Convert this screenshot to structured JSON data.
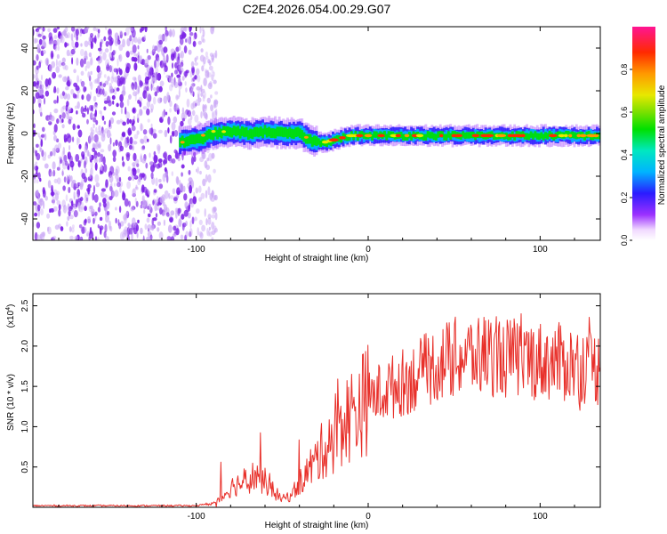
{
  "title": "C2E4.2026.054.00.29.G07",
  "colors": {
    "snr_line": "#e8302a",
    "spectrum_scatter": "#7a1ee6",
    "spectrum_scatter_light": "#c9a6f5",
    "axis": "#000000"
  },
  "chart_data": [
    {
      "type": "heatmap",
      "title": "C2E4.2026.054.00.29.G07",
      "xlabel": "Height of straight line (km)",
      "ylabel": "Frequency (Hz)",
      "xlim": [
        -195,
        135
      ],
      "ylim": [
        -50,
        50
      ],
      "xticks": [
        -100,
        0,
        100
      ],
      "xtick_labels": [
        "-100",
        "0",
        "100"
      ],
      "yticks": [
        -40,
        -20,
        0,
        20,
        40
      ],
      "ytick_labels": [
        "-40",
        "-20",
        "0",
        "20",
        "40"
      ],
      "noise_region_x": [
        -195,
        -100
      ],
      "signal_trace": {
        "x": [
          -110,
          -100,
          -90,
          -80,
          -70,
          -60,
          -50,
          -40,
          -35,
          -30,
          -25,
          -20,
          -15,
          -10,
          0,
          10,
          20,
          30,
          40,
          50,
          60,
          70,
          80,
          90,
          100,
          110,
          120,
          135
        ],
        "frequency": [
          -4,
          -3,
          0,
          1,
          0,
          1,
          0,
          0,
          -3,
          -4,
          -4,
          -3,
          -2,
          -1,
          -1,
          -1,
          -1,
          -1,
          -1,
          -1,
          -1,
          -1,
          -1,
          -1,
          -1,
          -1,
          -1,
          -1
        ]
      },
      "colorbar": {
        "label": "Normalized spectral amplitude",
        "range": [
          0.0,
          1.0
        ],
        "ticks": [
          0.0,
          0.2,
          0.4,
          0.6,
          0.8
        ],
        "tick_labels": [
          "0.0",
          "0.2",
          "0.4",
          "0.6",
          "0.8"
        ]
      }
    },
    {
      "type": "line",
      "xlabel": "Height of straight line (km)",
      "ylabel": "SNR (10 * v/v)",
      "y_multiplier": "(x10",
      "y_multiplier_exp": "4",
      "xlim": [
        -195,
        135
      ],
      "ylim": [
        0,
        2.65
      ],
      "xticks": [
        -100,
        0,
        100
      ],
      "xtick_labels": [
        "-100",
        "0",
        "100"
      ],
      "yticks": [
        0.5,
        1.0,
        1.5,
        2.0,
        2.5
      ],
      "ytick_labels": [
        "0.5",
        "1.0",
        "1.5",
        "2.0",
        "2.5"
      ],
      "series": [
        {
          "name": "SNR",
          "x": [
            -195,
            -150,
            -100,
            -90,
            -85,
            -80,
            -75,
            -70,
            -65,
            -60,
            -55,
            -50,
            -45,
            -40,
            -35,
            -30,
            -25,
            -20,
            -15,
            -10,
            -5,
            0,
            10,
            20,
            30,
            40,
            50,
            60,
            70,
            80,
            90,
            100,
            110,
            120,
            130,
            135
          ],
          "values": [
            0.02,
            0.02,
            0.02,
            0.05,
            0.12,
            0.25,
            0.3,
            0.35,
            0.4,
            0.32,
            0.2,
            0.1,
            0.15,
            0.3,
            0.45,
            0.6,
            0.75,
            0.95,
            1.05,
            1.15,
            1.25,
            1.35,
            1.45,
            1.55,
            1.65,
            1.78,
            1.85,
            1.88,
            1.9,
            1.85,
            1.85,
            1.82,
            1.8,
            1.78,
            1.75,
            1.72
          ]
        }
      ]
    }
  ]
}
